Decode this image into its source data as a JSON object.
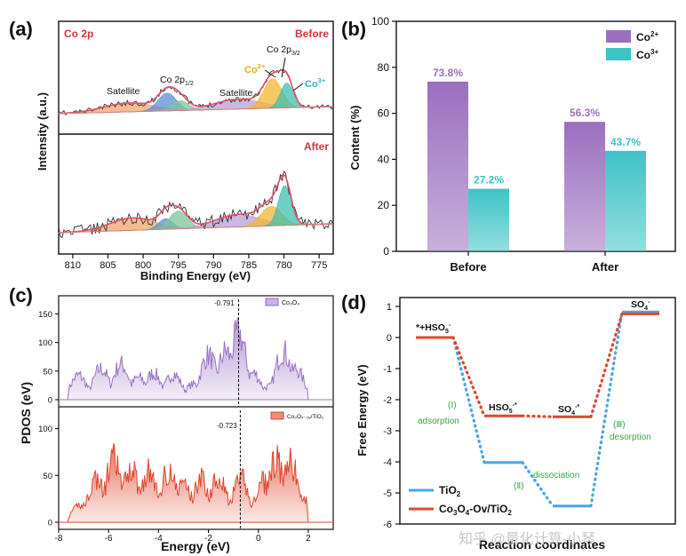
{
  "figure": {
    "panel_labels": [
      "(a)",
      "(b)",
      "(c)",
      "(d)"
    ],
    "watermark": "知乎 @量化计算-小琴"
  },
  "chart_data": [
    {
      "id": "a",
      "type": "line",
      "title": "XPS Co 2p",
      "corner_label": "Co 2p",
      "xlabel": "Binding Energy (eV)",
      "ylabel": "Intensity (a.u.)",
      "xlim": [
        812,
        773
      ],
      "xticks": [
        810,
        805,
        800,
        795,
        790,
        785,
        780,
        775
      ],
      "subpanels": [
        {
          "name": "Before",
          "label": "Before",
          "components": [
            {
              "name": "Satellite",
              "center": 802,
              "color": "#f4a36c"
            },
            {
              "name": "Co 2p1/2",
              "center": 796.6,
              "color": "#5b8fd6"
            },
            {
              "name": "Co 2p1/2 b",
              "center": 794.7,
              "color": "#7cc49a"
            },
            {
              "name": "Satellite",
              "center": 786.5,
              "color": "#b8a0d8"
            },
            {
              "name": "Co2+",
              "center": 781.6,
              "color": "#f2b632"
            },
            {
              "name": "Co3+",
              "center": 779.6,
              "color": "#3fbfb0"
            }
          ],
          "annotations": {
            "satellite_1": "Satellite",
            "co2p12": "Co 2p",
            "co2p12_sub": "1/2",
            "satellite_2": "Satellite",
            "co2p32": "Co 2p",
            "co2p32_sub": "3/2",
            "co2plus": "Co",
            "co2plus_sup": "2+",
            "co3plus": "Co",
            "co3plus_sup": "3+"
          }
        },
        {
          "name": "After",
          "label": "After",
          "components": [
            {
              "name": "Satellite",
              "center": 801.5,
              "color": "#f4a36c"
            },
            {
              "name": "Co 2p1/2",
              "center": 796.8,
              "color": "#5b8fd6"
            },
            {
              "name": "Co 2p1/2 b",
              "center": 795,
              "color": "#7cc49a"
            },
            {
              "name": "Satellite",
              "center": 786.5,
              "color": "#b8a0d8"
            },
            {
              "name": "Co2+",
              "center": 781.8,
              "color": "#f2b632"
            },
            {
              "name": "Co3+",
              "center": 779.9,
              "color": "#3fbfb0"
            }
          ]
        }
      ]
    },
    {
      "id": "b",
      "type": "bar",
      "categories": [
        "Before",
        "After"
      ],
      "series": [
        {
          "name": "Co2+",
          "legend": "Co",
          "legend_sup": "2+",
          "values": [
            73.8,
            56.3
          ],
          "labels": [
            "73.8%",
            "56.3%"
          ],
          "color": "#9b6fbf"
        },
        {
          "name": "Co3+",
          "legend": "Co",
          "legend_sup": "3+",
          "values": [
            27.2,
            43.7
          ],
          "labels": [
            "27.2%",
            "43.7%"
          ],
          "color": "#3ec3c6"
        }
      ],
      "xlabel": "",
      "ylabel": "Content (%)",
      "ylim": [
        0,
        100
      ],
      "yticks": [
        0,
        20,
        40,
        60,
        80,
        100
      ],
      "legend": "top-right"
    },
    {
      "id": "c",
      "type": "area",
      "xlabel": "Energy (eV)",
      "ylabel": "PDOS (eV)",
      "xlim": [
        -8,
        3
      ],
      "xticks": [
        -8,
        -6,
        -4,
        -2,
        0,
        2
      ],
      "subpanels": [
        {
          "name": "Co3O4",
          "legend": "Co₃O₄",
          "fermi_label": "-0.791",
          "fermi": -0.791,
          "ylim": [
            0,
            160
          ],
          "yticks": [
            0,
            50,
            100,
            150
          ],
          "color": "#9a72c4"
        },
        {
          "name": "Co3O4-Ov/TiO2",
          "legend": "Co₃O₄₋ₒᵥ/TiO₂",
          "fermi_label": "-0.723",
          "fermi": -0.723,
          "ylim": [
            0,
            110
          ],
          "yticks": [
            0,
            50,
            100
          ],
          "color": "#e0452d"
        }
      ]
    },
    {
      "id": "d",
      "type": "line",
      "xlabel": "Reaction coordinates",
      "ylabel": "Free Energy (eV)",
      "ylim": [
        -6,
        1
      ],
      "yticks": [
        1,
        0,
        -1,
        -2,
        -3,
        -4,
        -5,
        -6
      ],
      "states": [
        "*+HSO5-",
        "HSO5-*",
        "SO4-*",
        "SO4-"
      ],
      "state_labels": [
        {
          "text": "*+HSO",
          "sub": "5",
          "sup": "-"
        },
        {
          "text": "HSO",
          "sub": "5",
          "sup": "-*"
        },
        {
          "text": "SO",
          "sub": "4",
          "sup": "-*"
        },
        {
          "text": "SO",
          "sub": "4",
          "sup": "-"
        }
      ],
      "series": [
        {
          "name": "TiO2",
          "legend": "TiO",
          "legend_sub": "2",
          "values": [
            0,
            -4.02,
            -5.42,
            0.82
          ],
          "color": "#4aa6dc"
        },
        {
          "name": "Co3O4-Ov/TiO2",
          "legend": "Co",
          "legend_rest": "O",
          "legend_tail": "-Ov/TiO",
          "values": [
            0,
            -2.52,
            -2.55,
            0.76
          ],
          "color": "#e0452d"
        }
      ],
      "step_labels": {
        "s1": "(Ⅰ)",
        "s1_text": "adsorption",
        "s2": "(Ⅱ)",
        "s2_text": "dissociation",
        "s3": "(Ⅲ)",
        "s3_text": "desorption",
        "color": "#3aa64a"
      }
    }
  ]
}
